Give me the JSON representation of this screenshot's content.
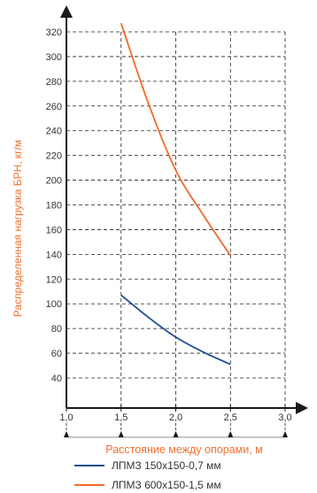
{
  "chart_data": {
    "type": "line",
    "xlabel": "Расстояние между опорами, м",
    "ylabel": "Распределенная нагрузка БРН, кг/м",
    "xlim": [
      1.0,
      3.0
    ],
    "ylim": [
      20,
      330
    ],
    "x_ticks": [
      "1,0",
      "1,5",
      "2,0",
      "2,5",
      "3,0"
    ],
    "y_ticks": [
      "40",
      "60",
      "80",
      "100",
      "120",
      "140",
      "160",
      "180",
      "200",
      "220",
      "240",
      "260",
      "280",
      "300",
      "320"
    ],
    "grid": "dashed",
    "legend_position": "bottom",
    "colors": {
      "axis": "#1a1a1a",
      "grid": "#222222",
      "label": "#f07030"
    },
    "series": [
      {
        "name": "ЛПМЗ 150х150-0,7 мм",
        "color": "#1e4c8f",
        "x": [
          1.5,
          1.75,
          2.0,
          2.25,
          2.5
        ],
        "y": [
          107,
          89,
          73,
          61,
          51
        ]
      },
      {
        "name": "ЛПМЗ 600х150-1,5 мм",
        "color": "#f06a2c",
        "x": [
          1.5,
          1.75,
          2.0,
          2.25,
          2.5
        ],
        "y": [
          327,
          262,
          208,
          172,
          139
        ]
      }
    ]
  }
}
